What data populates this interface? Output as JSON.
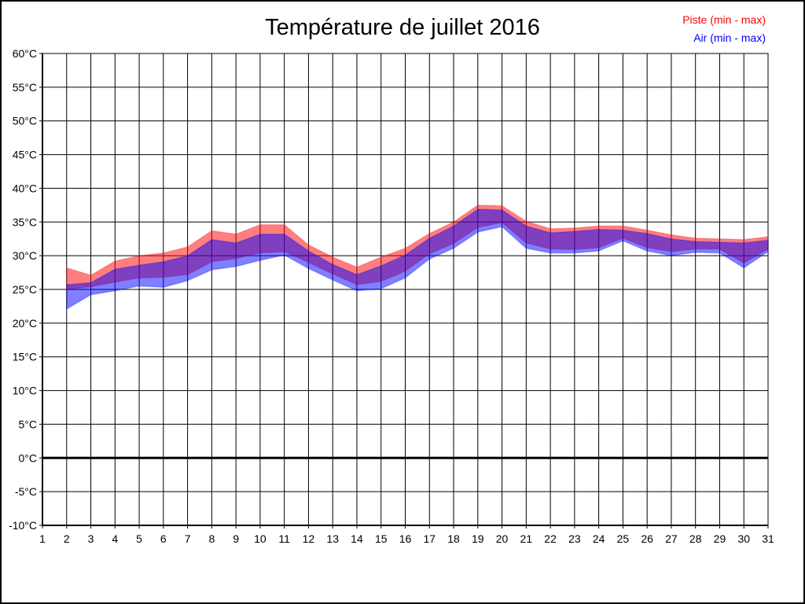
{
  "page": {
    "background": "#ffffff",
    "border_color": "#000000"
  },
  "chart_data": {
    "type": "area",
    "title": "Température de juillet 2016",
    "xlabel": "",
    "ylabel": "",
    "xlim": [
      1,
      31
    ],
    "ylim": [
      -10,
      60
    ],
    "x_tick_labels": [
      "1",
      "2",
      "3",
      "4",
      "5",
      "6",
      "7",
      "8",
      "9",
      "10",
      "11",
      "12",
      "13",
      "14",
      "15",
      "16",
      "17",
      "18",
      "19",
      "20",
      "21",
      "22",
      "23",
      "24",
      "25",
      "26",
      "27",
      "28",
      "29",
      "30",
      "31"
    ],
    "y_tick_labels": [
      "60°C",
      "55°C",
      "50°C",
      "45°C",
      "40°C",
      "35°C",
      "30°C",
      "25°C",
      "20°C",
      "15°C",
      "10°C",
      "5°C",
      "0°C",
      "-5°C",
      "-10°C"
    ],
    "y_tick_values": [
      60,
      55,
      50,
      45,
      40,
      35,
      30,
      25,
      20,
      15,
      10,
      5,
      0,
      -5,
      -10
    ],
    "grid": true,
    "zero_line": {
      "value": 0,
      "color": "#000000",
      "width": 3
    },
    "legend_position": "top-right",
    "grid_color": "#000000",
    "text_color": "#000000",
    "series": [
      {
        "name": "Piste",
        "label": "Piste (min - max)",
        "color": "#ff0000",
        "fill_alpha": 0.5,
        "days": [
          2,
          3,
          4,
          5,
          6,
          7,
          8,
          9,
          10,
          11,
          12,
          13,
          14,
          15,
          16,
          17,
          18,
          19,
          20,
          21,
          22,
          23,
          24,
          25,
          26,
          27,
          28,
          29,
          30,
          31
        ],
        "min": [
          25.0,
          25.4,
          26.1,
          26.7,
          26.8,
          27.2,
          29.1,
          29.6,
          30.4,
          30.6,
          29.0,
          27.3,
          25.7,
          26.2,
          27.7,
          30.3,
          31.8,
          34.2,
          34.9,
          31.9,
          31.0,
          30.9,
          31.2,
          32.6,
          31.2,
          30.6,
          31.0,
          31.0,
          28.9,
          31.0
        ],
        "max": [
          28.2,
          27.1,
          29.2,
          30.0,
          30.4,
          31.3,
          33.7,
          33.2,
          34.6,
          34.6,
          31.6,
          29.8,
          28.3,
          29.8,
          31.1,
          33.3,
          35.0,
          37.5,
          37.4,
          35.1,
          34.0,
          34.1,
          34.4,
          34.4,
          33.8,
          33.1,
          32.6,
          32.5,
          32.4,
          32.8
        ]
      },
      {
        "name": "Air",
        "label": "Air (min - max)",
        "color": "#0000ff",
        "fill_alpha": 0.5,
        "days": [
          2,
          3,
          4,
          5,
          6,
          7,
          8,
          9,
          10,
          11,
          12,
          13,
          14,
          15,
          16,
          17,
          18,
          19,
          20,
          21,
          22,
          23,
          24,
          25,
          26,
          27,
          28,
          29,
          30,
          31
        ],
        "min": [
          22.1,
          24.2,
          24.8,
          25.5,
          25.3,
          26.3,
          27.9,
          28.4,
          29.3,
          30.1,
          28.1,
          26.4,
          24.8,
          25.1,
          26.7,
          29.5,
          31.1,
          33.5,
          34.3,
          31.1,
          30.4,
          30.4,
          30.7,
          32.2,
          30.7,
          30.0,
          30.5,
          30.4,
          28.2,
          30.6
        ],
        "max": [
          25.7,
          26.0,
          28.0,
          28.6,
          29.1,
          30.0,
          32.4,
          31.9,
          33.2,
          33.2,
          30.7,
          28.7,
          27.2,
          28.5,
          30.1,
          32.6,
          34.4,
          36.9,
          36.8,
          34.4,
          33.4,
          33.6,
          33.9,
          33.8,
          33.3,
          32.5,
          32.1,
          32.0,
          31.9,
          32.3
        ]
      }
    ]
  }
}
